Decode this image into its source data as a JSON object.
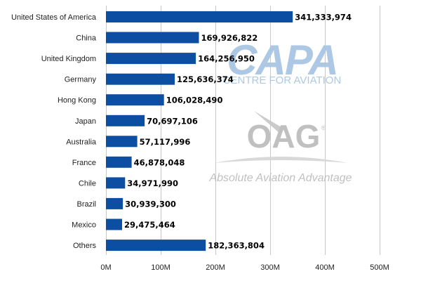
{
  "chart_data": {
    "type": "bar",
    "orientation": "horizontal",
    "categories": [
      "United States of America",
      "China",
      "United Kingdom",
      "Germany",
      "Hong Kong",
      "Japan",
      "Australia",
      "France",
      "Chile",
      "Brazil",
      "Mexico",
      "Others"
    ],
    "values": [
      341333974,
      169926822,
      164256950,
      125636374,
      106028490,
      70697106,
      57117996,
      46878048,
      34971990,
      30939300,
      29475464,
      182363804
    ],
    "value_labels": [
      "341,333,974",
      "169,926,822",
      "164,256,950",
      "125,636,374",
      "106,028,490",
      "70,697,106",
      "57,117,996",
      "46,878,048",
      "34,971,990",
      "30,939,300",
      "29,475,464",
      "182,363,804"
    ],
    "title": "",
    "xlabel": "",
    "ylabel": "",
    "xlim": [
      0,
      500000000
    ],
    "x_ticks": [
      0,
      100000000,
      200000000,
      300000000,
      400000000,
      500000000
    ],
    "x_tick_labels": [
      "0M",
      "100M",
      "200M",
      "300M",
      "400M",
      "500M"
    ],
    "grid": true,
    "bar_color": "#0B4EA2",
    "grid_color": "#C8C8C8"
  },
  "watermarks": {
    "capa_logo_text": "CAPA",
    "capa_subtitle": "CENTRE FOR AVIATION",
    "oag_logo_text": "OAG",
    "oag_registered": "®",
    "oag_tagline": "Absolute Aviation Advantage",
    "capa_color": "#A9C6E4",
    "oag_color": "#BDBDBD"
  }
}
